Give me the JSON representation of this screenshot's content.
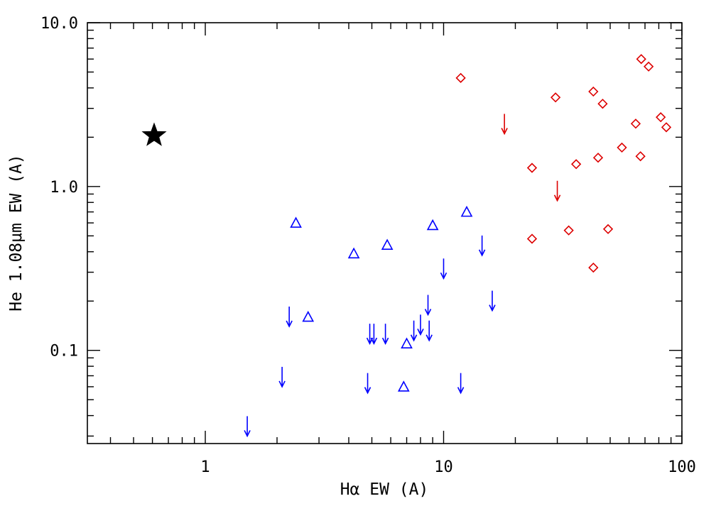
{
  "chart_data": {
    "type": "scatter",
    "title": "",
    "xlabel": "Hα EW (A)",
    "ylabel": "He 1.08μm EW (A)",
    "x_scale": "log",
    "y_scale": "log",
    "xlim": [
      0.32,
      100
    ],
    "ylim": [
      0.027,
      10
    ],
    "x_ticks": [
      1,
      10,
      100
    ],
    "x_tick_labels": [
      "1",
      "10",
      "100"
    ],
    "y_ticks": [
      0.1,
      1,
      10
    ],
    "y_tick_labels": [
      "0.1",
      "1.0",
      "10.0"
    ],
    "grid": false,
    "legend": "none",
    "series": [
      {
        "marker": "triangle",
        "color": "#0000ff",
        "points": [
          [
            2.4,
            0.6
          ],
          [
            2.7,
            0.16
          ],
          [
            4.2,
            0.39
          ],
          [
            5.8,
            0.44
          ],
          [
            7.0,
            0.11
          ],
          [
            9.0,
            0.58
          ],
          [
            12.5,
            0.7
          ],
          [
            6.8,
            0.06
          ]
        ]
      },
      {
        "marker": "down-arrow",
        "color": "#0000ff",
        "points": [
          [
            1.5,
            0.03
          ],
          [
            2.1,
            0.06
          ],
          [
            2.25,
            0.14
          ],
          [
            4.9,
            0.11
          ],
          [
            5.1,
            0.11
          ],
          [
            5.7,
            0.11
          ],
          [
            4.8,
            0.055
          ],
          [
            7.5,
            0.115
          ],
          [
            8.0,
            0.125
          ],
          [
            8.7,
            0.115
          ],
          [
            8.6,
            0.165
          ],
          [
            10.0,
            0.275
          ],
          [
            11.8,
            0.055
          ],
          [
            14.5,
            0.38
          ],
          [
            16.0,
            0.175
          ]
        ]
      },
      {
        "marker": "diamond",
        "color": "#dd0000",
        "points": [
          [
            11.8,
            4.6
          ],
          [
            23.5,
            0.48
          ],
          [
            23.5,
            1.3
          ],
          [
            29.5,
            3.5
          ],
          [
            33.5,
            0.54
          ],
          [
            36.0,
            1.37
          ],
          [
            42.5,
            3.8
          ],
          [
            42.5,
            0.32
          ],
          [
            44.5,
            1.5
          ],
          [
            46.5,
            3.2
          ],
          [
            49.0,
            0.55
          ],
          [
            56.0,
            1.73
          ],
          [
            64.0,
            2.42
          ],
          [
            67.0,
            1.53
          ],
          [
            67.5,
            6.0
          ],
          [
            72.5,
            5.4
          ],
          [
            81.5,
            2.65
          ],
          [
            86.0,
            2.3
          ]
        ]
      },
      {
        "marker": "down-arrow",
        "color": "#dd0000",
        "points": [
          [
            18.0,
            2.1
          ],
          [
            30.0,
            0.82
          ]
        ]
      },
      {
        "marker": "star",
        "color": "#000000",
        "points": [
          [
            0.61,
            2.05
          ]
        ]
      }
    ]
  }
}
